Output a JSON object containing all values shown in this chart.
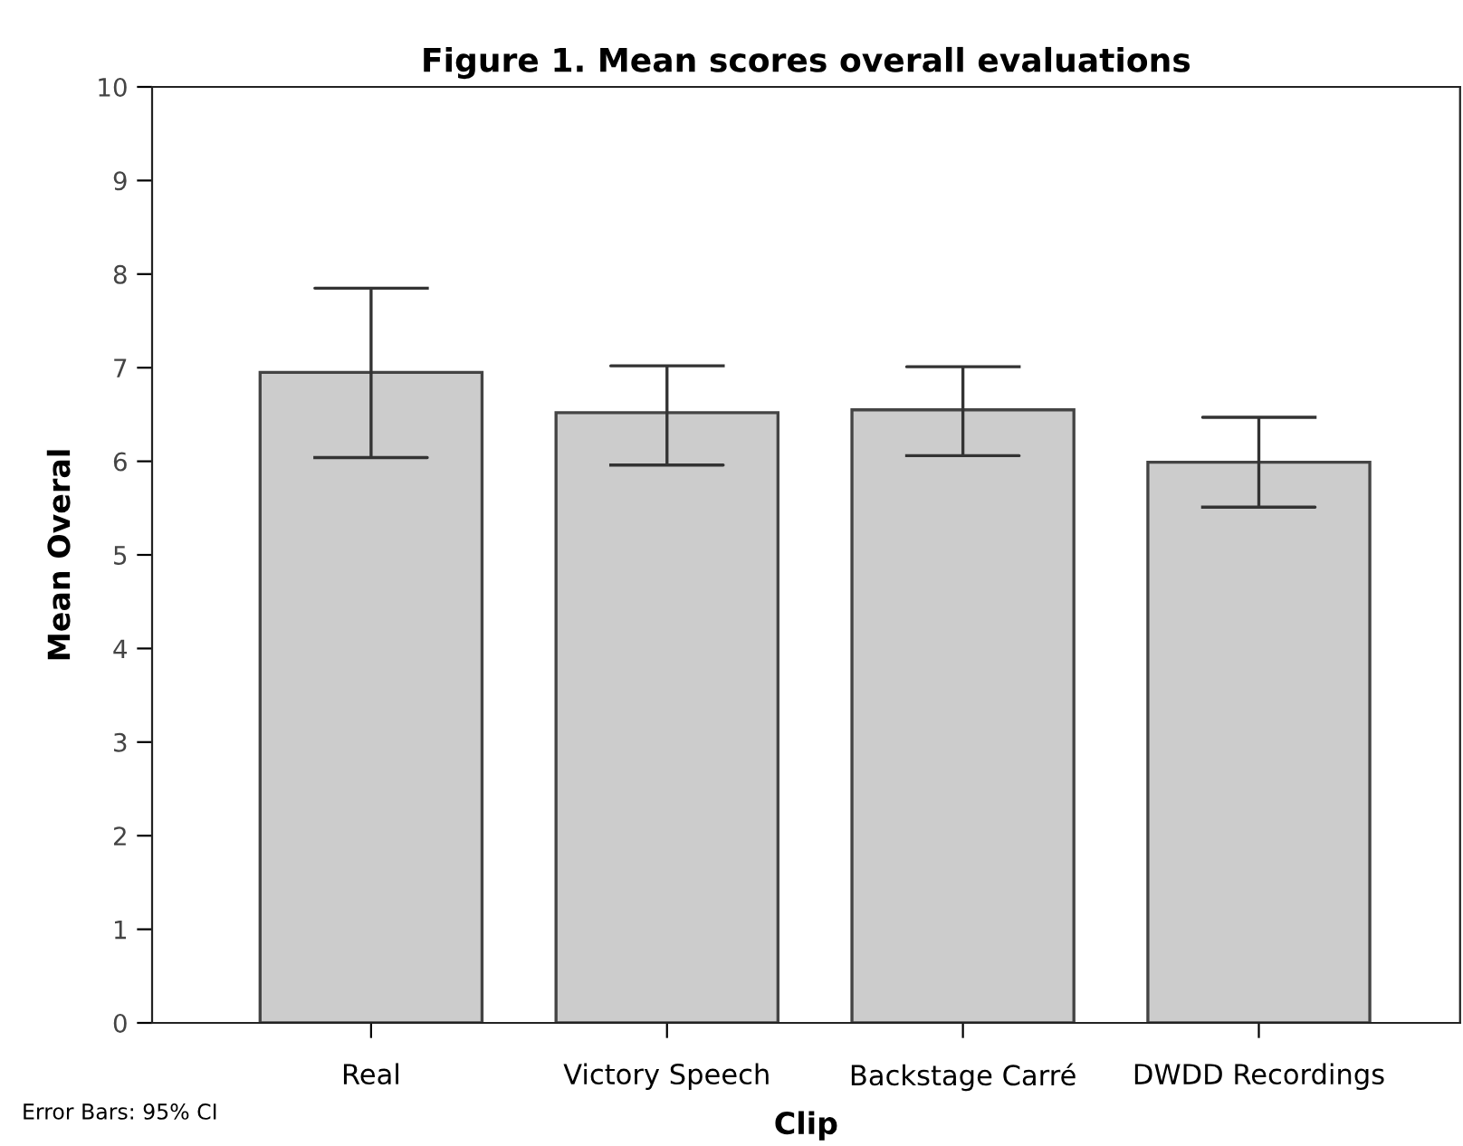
{
  "chart_data": {
    "type": "bar",
    "title": "Figure 1. Mean scores overall evaluations",
    "xlabel": "Clip",
    "ylabel": "Mean Overal",
    "categories": [
      "Real",
      "Victory Speech",
      "Backstage Carré",
      "DWDD Recordings"
    ],
    "values": [
      6.95,
      6.52,
      6.55,
      5.99
    ],
    "errors": [
      [
        6.04,
        7.85
      ],
      [
        5.96,
        7.02
      ],
      [
        6.06,
        7.01
      ],
      [
        5.51,
        6.47
      ]
    ],
    "color": "#cccccc",
    "ylim": [
      0,
      10
    ],
    "yticks": [
      0,
      1,
      2,
      3,
      4,
      5,
      6,
      7,
      8,
      9,
      10
    ],
    "grid": false,
    "annotations": [
      "Error Bars: 95% CI"
    ]
  }
}
